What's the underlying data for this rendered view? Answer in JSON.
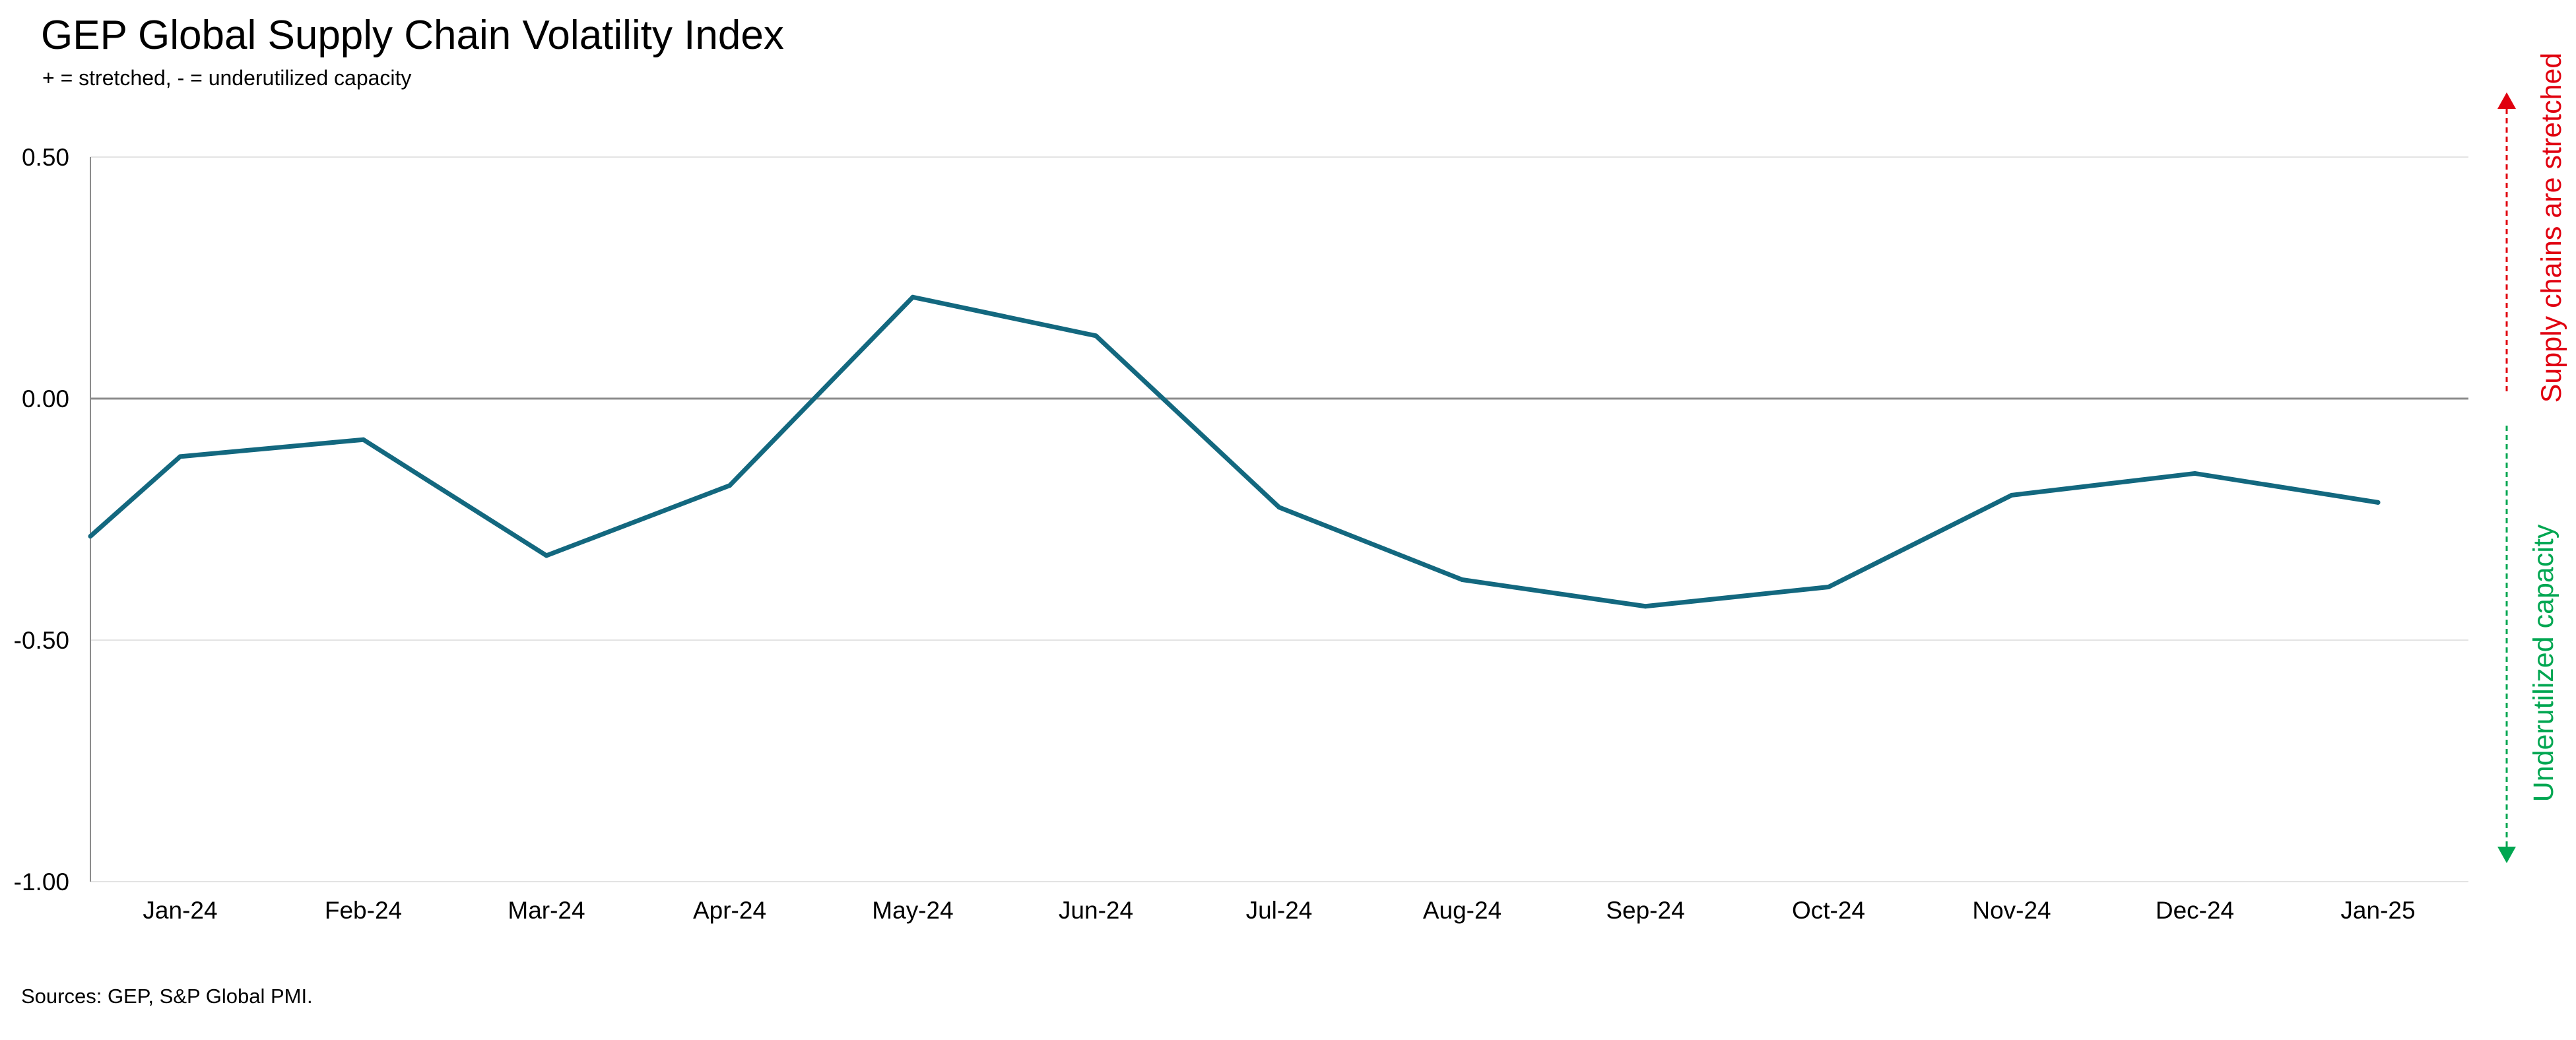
{
  "chart_data": {
    "type": "line",
    "title": "GEP Global Supply Chain Volatility Index",
    "subtitle": "+ = stretched, - = underutilized capacity",
    "source": "Sources: GEP, S&P Global PMI.",
    "categories": [
      "Jan-24",
      "Feb-24",
      "Mar-24",
      "Apr-24",
      "May-24",
      "Jun-24",
      "Jul-24",
      "Aug-24",
      "Sep-24",
      "Oct-24",
      "Nov-24",
      "Dec-24",
      "Jan-25"
    ],
    "series": [
      {
        "values": [
          -0.12,
          -0.085,
          -0.325,
          -0.18,
          0.21,
          0.13,
          -0.225,
          -0.375,
          -0.43,
          -0.39,
          -0.2,
          -0.155,
          -0.215
        ],
        "start_value": -0.285,
        "color": "#13687F"
      }
    ],
    "ylim": [
      -1.0,
      0.5
    ],
    "yticks": [
      0.5,
      0.0,
      -0.5,
      -1.0
    ],
    "ytick_labels": [
      "0.50",
      "0.00",
      "-0.50",
      "-1.00"
    ],
    "grid": true,
    "annotations": {
      "upper": {
        "text": "Supply chains are stretched",
        "color": "#E0000F"
      },
      "lower": {
        "text": "Underutilized capacity",
        "color": "#00A651"
      }
    }
  }
}
